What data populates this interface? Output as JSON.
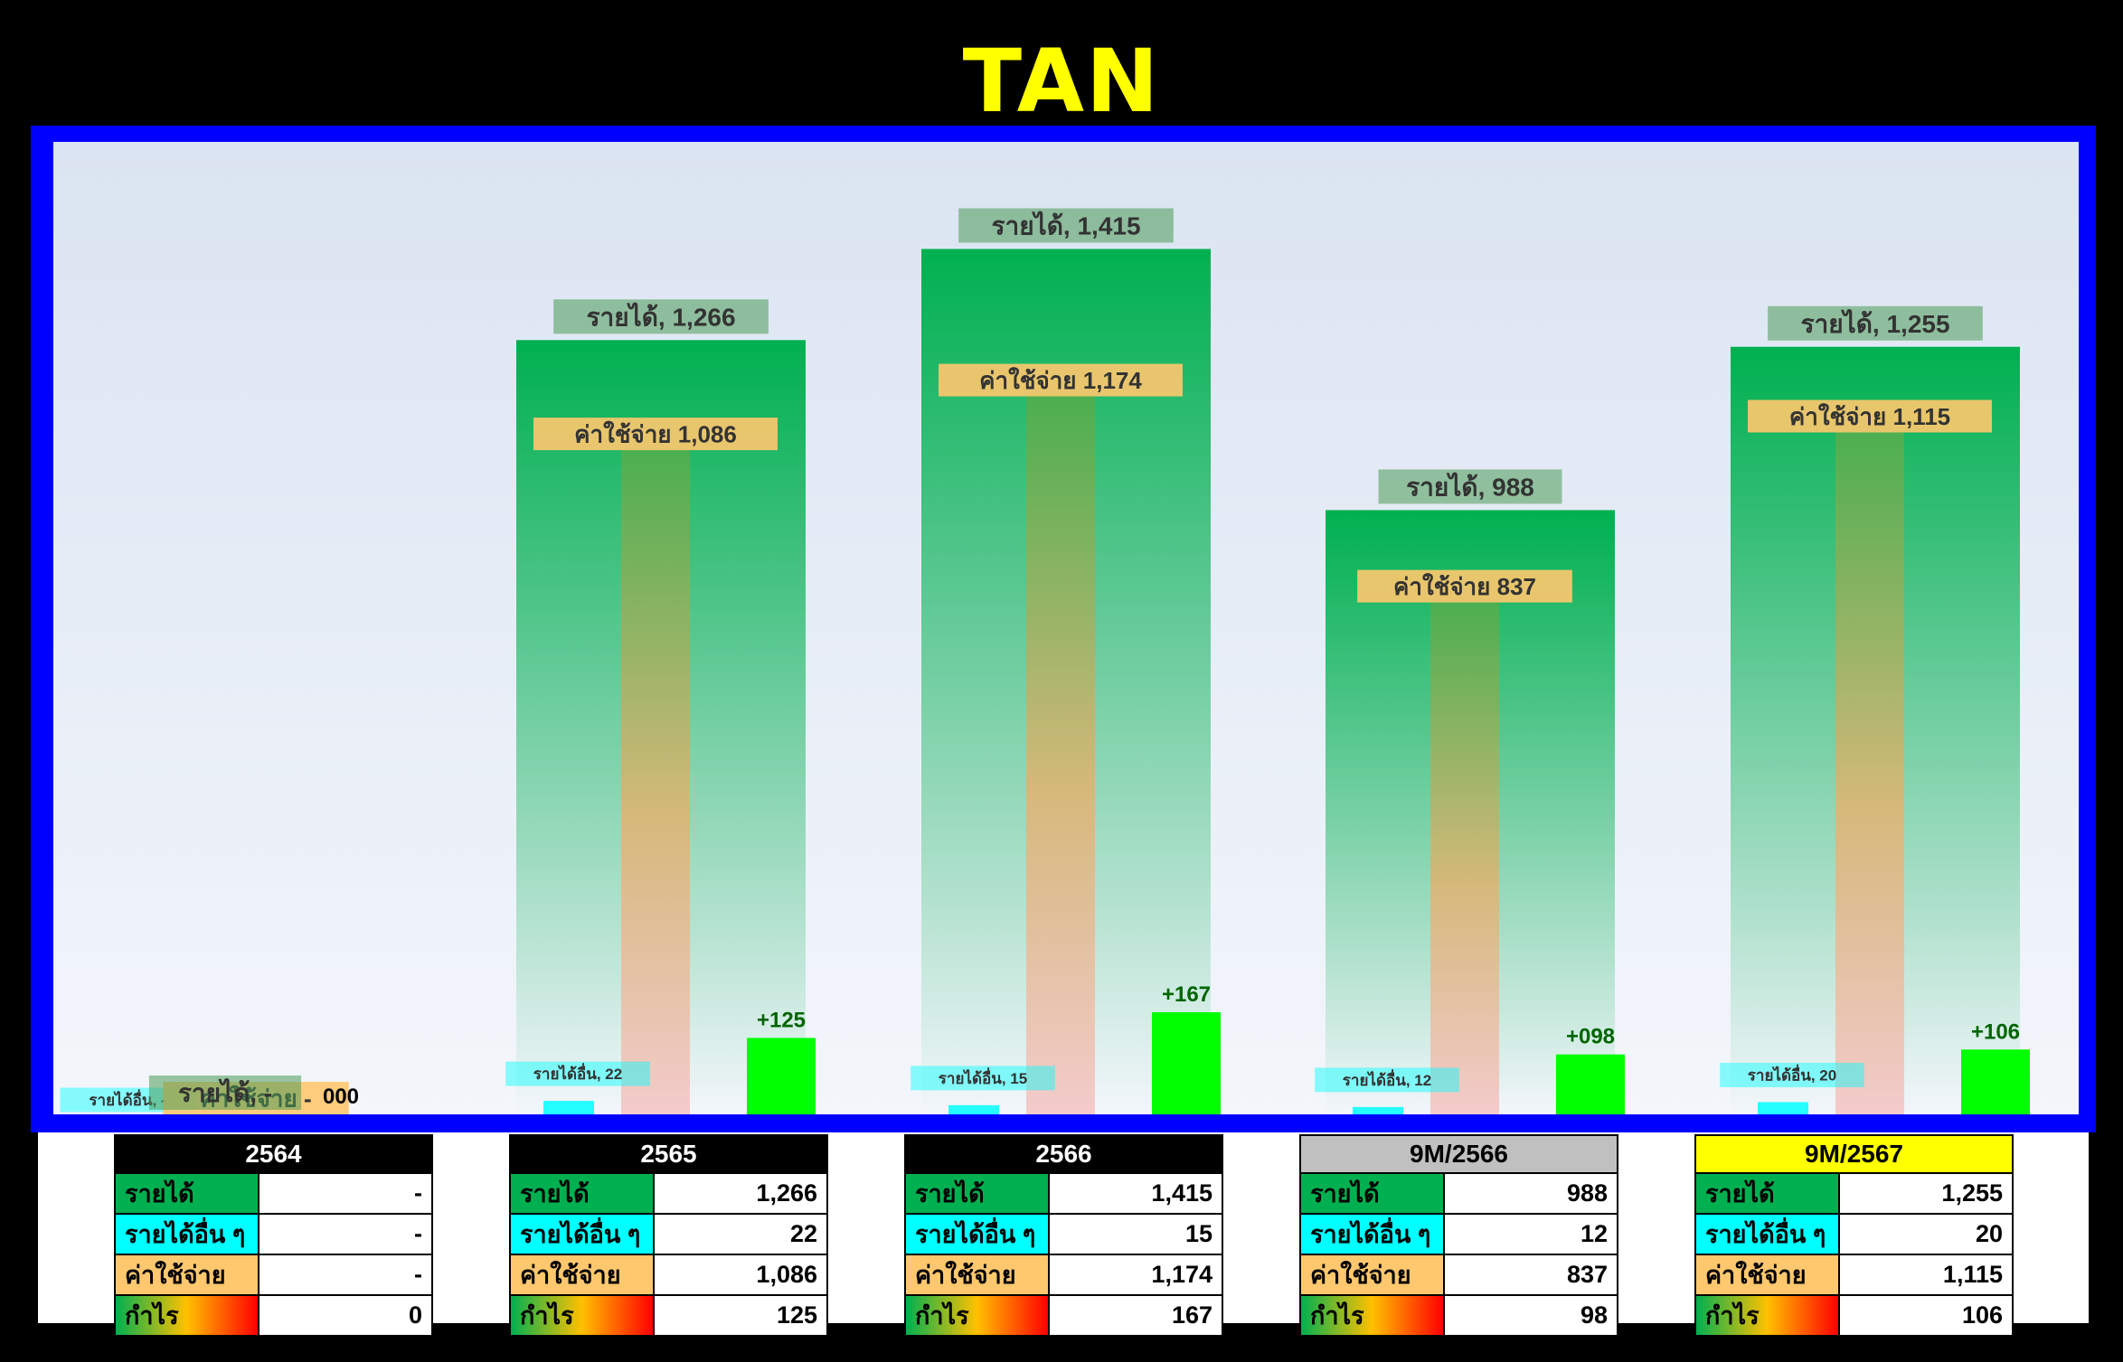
{
  "title": "TAN",
  "chart_data": {
    "type": "bar",
    "categories": [
      "2564",
      "2565",
      "2566",
      "9M/2566",
      "9M/2567"
    ],
    "series": [
      {
        "name": "รายได้",
        "values": [
          0,
          1266,
          1415,
          988,
          1255
        ],
        "labels": [
          "-",
          "1,266",
          "1,415",
          "988",
          "1,255"
        ]
      },
      {
        "name": "ค่าใช้จ่าย",
        "values": [
          0,
          1086,
          1174,
          837,
          1115
        ],
        "labels": [
          "-",
          "1,086",
          "1,174",
          "837",
          "1,115"
        ]
      },
      {
        "name": "รายได้อื่น",
        "values": [
          0,
          22,
          15,
          12,
          20
        ],
        "labels": [
          "-",
          "22",
          "15",
          "12",
          "20"
        ]
      },
      {
        "name": "กำไร",
        "values": [
          0,
          125,
          167,
          98,
          106
        ],
        "labels": [
          "000",
          "+125",
          "+167",
          "+098",
          "+106"
        ]
      }
    ],
    "label_prefixes": {
      "revenue": "รายได้, ",
      "expense": "ค่าใช้จ่าย ",
      "other": "รายได้อื่น, "
    },
    "ylim": [
      0,
      1500
    ],
    "colors": {
      "revenue": "#00b050",
      "expense": "#4caf50",
      "other": "#00ffff",
      "profit": "#00ff00",
      "profit_label": "#006400"
    }
  },
  "tables": [
    {
      "header": "2564",
      "header_bg": "#000000",
      "header_fg": "#ffffff",
      "rows": [
        {
          "key": "รายได้",
          "val": "-"
        },
        {
          "key": "รายได้อื่น ๆ",
          "val": "-"
        },
        {
          "key": "ค่าใช้จ่าย",
          "val": "-"
        },
        {
          "key": "กำไร",
          "val": "0"
        }
      ]
    },
    {
      "header": "2565",
      "header_bg": "#000000",
      "header_fg": "#ffffff",
      "rows": [
        {
          "key": "รายได้",
          "val": "1,266"
        },
        {
          "key": "รายได้อื่น ๆ",
          "val": "22"
        },
        {
          "key": "ค่าใช้จ่าย",
          "val": "1,086"
        },
        {
          "key": "กำไร",
          "val": "125"
        }
      ]
    },
    {
      "header": "2566",
      "header_bg": "#000000",
      "header_fg": "#ffffff",
      "rows": [
        {
          "key": "รายได้",
          "val": "1,415"
        },
        {
          "key": "รายได้อื่น ๆ",
          "val": "15"
        },
        {
          "key": "ค่าใช้จ่าย",
          "val": "1,174"
        },
        {
          "key": "กำไร",
          "val": "167"
        }
      ]
    },
    {
      "header": "9M/2566",
      "header_bg": "#c0c0c0",
      "header_fg": "#000000",
      "rows": [
        {
          "key": "รายได้",
          "val": "988"
        },
        {
          "key": "รายได้อื่น ๆ",
          "val": "12"
        },
        {
          "key": "ค่าใช้จ่าย",
          "val": "837"
        },
        {
          "key": "กำไร",
          "val": "98"
        }
      ]
    },
    {
      "header": "9M/2567",
      "header_bg": "#ffff00",
      "header_fg": "#000000",
      "rows": [
        {
          "key": "รายได้",
          "val": "1,255"
        },
        {
          "key": "รายได้อื่น ๆ",
          "val": "20"
        },
        {
          "key": "ค่าใช้จ่าย",
          "val": "1,115"
        },
        {
          "key": "กำไร",
          "val": "106"
        }
      ]
    }
  ]
}
